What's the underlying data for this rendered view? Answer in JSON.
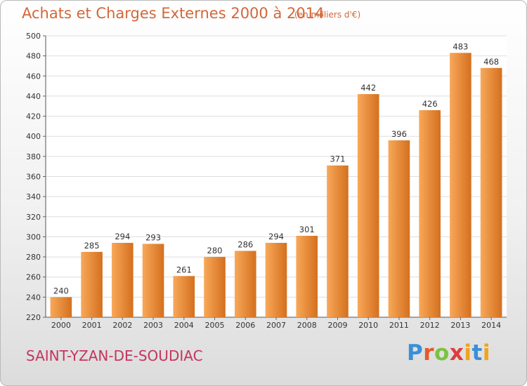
{
  "header": {
    "title": "Achats et Charges Externes 2000 à 2014",
    "subtitle": "(en milliers d'€)"
  },
  "footer": {
    "commune": "SAINT-YZAN-DE-SOUDIAC",
    "logo_text": "Proxiti"
  },
  "colors": {
    "bar_light": "#f8a85a",
    "bar_dark": "#d4701e",
    "title": "#d2673a",
    "commune": "#c3355f",
    "grid": "#dddddd"
  },
  "chart_data": {
    "type": "bar",
    "title": "Achats et Charges Externes 2000 à 2014",
    "subtitle": "(en milliers d'€)",
    "xlabel": "",
    "ylabel": "",
    "ylim": [
      220,
      500
    ],
    "yticks": [
      220,
      240,
      260,
      280,
      300,
      320,
      340,
      360,
      380,
      400,
      420,
      440,
      460,
      480,
      500
    ],
    "grid": true,
    "categories": [
      "2000",
      "2001",
      "2002",
      "2003",
      "2004",
      "2005",
      "2006",
      "2007",
      "2008",
      "2009",
      "2010",
      "2011",
      "2012",
      "2013",
      "2014"
    ],
    "values": [
      240,
      285,
      294,
      293,
      261,
      280,
      286,
      294,
      301,
      371,
      442,
      396,
      426,
      483,
      468
    ]
  }
}
